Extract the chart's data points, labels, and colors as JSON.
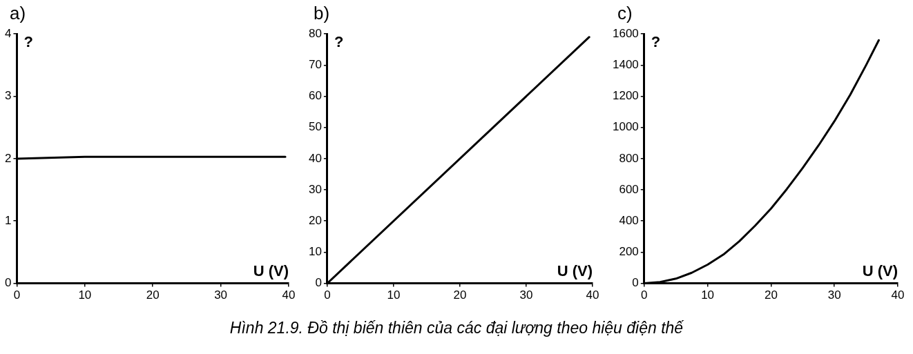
{
  "chart_data": [
    {
      "type": "line",
      "title": "a)",
      "xlabel": "U (V)",
      "ylabel": "?",
      "x": [
        0,
        10,
        20,
        30,
        39.5
      ],
      "series": [
        {
          "color": "#000000",
          "values": [
            2.0,
            2.03,
            2.03,
            2.03,
            2.03
          ]
        }
      ],
      "xlim": [
        0,
        40
      ],
      "ylim": [
        0,
        4
      ],
      "xticks": [
        0,
        10,
        20,
        30,
        40
      ],
      "yticks": [
        0,
        1,
        2,
        3,
        4
      ],
      "grid": false,
      "legend": false,
      "marker": "none",
      "line_style": "solid"
    },
    {
      "type": "line",
      "title": "b)",
      "xlabel": "U (V)",
      "ylabel": "?",
      "x": [
        0,
        39.5
      ],
      "series": [
        {
          "color": "#000000",
          "values": [
            0,
            79
          ]
        }
      ],
      "xlim": [
        0,
        40
      ],
      "ylim": [
        0,
        80
      ],
      "xticks": [
        0,
        10,
        20,
        30,
        40
      ],
      "yticks": [
        0,
        10,
        20,
        30,
        40,
        50,
        60,
        70,
        80
      ],
      "grid": false,
      "legend": false,
      "marker": "none",
      "line_style": "solid",
      "annotations": [
        "Hình 21.9. Đồ thị biến thiên của các đại lượng theo hiệu điện thế"
      ]
    },
    {
      "type": "line",
      "title": "c)",
      "xlabel": "U (V)",
      "ylabel": "?",
      "x": [
        0,
        2.5,
        5,
        7.5,
        10,
        12.5,
        15,
        17.5,
        20,
        22.5,
        25,
        27.5,
        30,
        32.5,
        35,
        37
      ],
      "series": [
        {
          "color": "#000000",
          "values": [
            0,
            8,
            30,
            68,
            120,
            185,
            270,
            370,
            480,
            605,
            740,
            885,
            1040,
            1210,
            1400,
            1560
          ]
        }
      ],
      "xlim": [
        0,
        40
      ],
      "ylim": [
        0,
        1600
      ],
      "xticks": [
        0,
        10,
        20,
        30,
        40
      ],
      "yticks": [
        0,
        200,
        400,
        600,
        800,
        1000,
        1200,
        1400,
        1600
      ],
      "grid": false,
      "legend": false,
      "marker": "none",
      "line_style": "solid"
    }
  ]
}
